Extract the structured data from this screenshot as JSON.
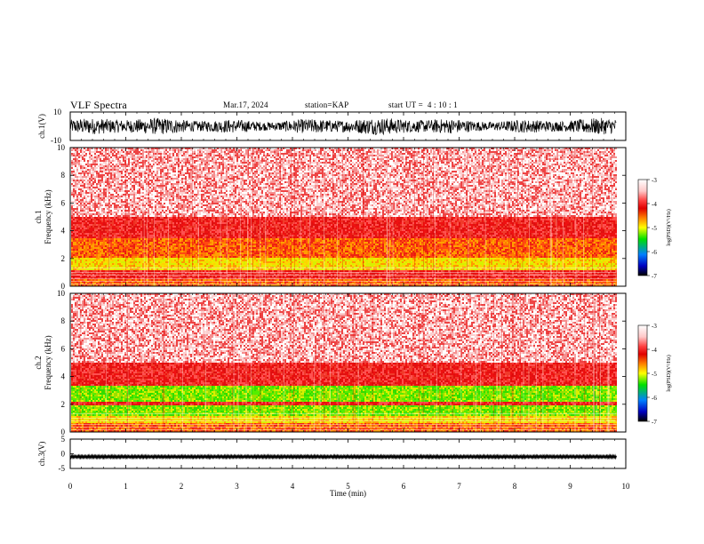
{
  "header": {
    "title": "VLF Spectra",
    "date": "Mar.17, 2024",
    "station_label": "station=",
    "station": "KAP",
    "start_label": "start  UT  =",
    "start_time": "4 : 10 : 1"
  },
  "colors": {
    "background_white": "#ffffff",
    "spectrogram_red": "#ee1111",
    "spectrogram_orange": "#ff7a00",
    "spectrogram_yellow": "#f0e800",
    "spectrogram_green": "#33dd00",
    "waveform": "#000000"
  },
  "chart_data": [
    {
      "type": "line",
      "name": "ch1-waveform",
      "ylabel": "ch.1(V)",
      "ylim": [
        -10,
        10
      ],
      "yticks": [
        "10",
        "-10"
      ],
      "xlim": [
        0,
        10
      ],
      "description_values": {
        "x_min": 0,
        "x_max": 9.83,
        "amplitude_typical": 6
      }
    },
    {
      "type": "heatmap",
      "name": "ch1-spectrogram",
      "ylabel": "ch.1\nFrequency (kHz)",
      "ylabel_line1": "ch.1",
      "ylabel_line2": "Frequency (kHz)",
      "ylim": [
        0,
        10
      ],
      "yticks": [
        "0",
        "2",
        "4",
        "6",
        "8",
        "10"
      ],
      "xlim": [
        0,
        10
      ],
      "data_x_max": 9.83,
      "colorbar": {
        "label": "log(PSD)(V²/Hz)",
        "ticks": [
          "-3",
          "-4",
          "-5",
          "-6",
          "-7"
        ],
        "range": [
          -7,
          -3
        ]
      },
      "bands": [
        {
          "f_low": 0.0,
          "f_high": 0.5,
          "level": "orange"
        },
        {
          "f_low": 0.5,
          "f_high": 1.2,
          "level": "red"
        },
        {
          "f_low": 1.2,
          "f_high": 2.0,
          "level": "yellow"
        },
        {
          "f_low": 2.0,
          "f_high": 3.5,
          "level": "orange"
        },
        {
          "f_low": 3.5,
          "f_high": 5.0,
          "level": "red"
        },
        {
          "f_low": 5.0,
          "f_high": 10.0,
          "level": "light-red"
        }
      ]
    },
    {
      "type": "heatmap",
      "name": "ch2-spectrogram",
      "ylabel_line1": "ch.2",
      "ylabel_line2": "Frequency (kHz)",
      "ylim": [
        0,
        10
      ],
      "yticks": [
        "0",
        "2",
        "4",
        "6",
        "8",
        "10"
      ],
      "xlim": [
        0,
        10
      ],
      "data_x_max": 9.83,
      "colorbar": {
        "label": "log(PSD)(V²/Hz)",
        "ticks": [
          "-3",
          "-4",
          "-5",
          "-6",
          "-7"
        ],
        "range": [
          -7,
          -3
        ]
      },
      "bands": [
        {
          "f_low": 0.0,
          "f_high": 0.6,
          "level": "orange"
        },
        {
          "f_low": 0.6,
          "f_high": 1.2,
          "level": "yellow"
        },
        {
          "f_low": 1.2,
          "f_high": 1.9,
          "level": "green"
        },
        {
          "f_low": 1.9,
          "f_high": 2.2,
          "level": "red"
        },
        {
          "f_low": 2.2,
          "f_high": 3.3,
          "level": "green"
        },
        {
          "f_low": 3.3,
          "f_high": 5.0,
          "level": "red"
        },
        {
          "f_low": 5.0,
          "f_high": 10.0,
          "level": "light-red"
        }
      ]
    },
    {
      "type": "line",
      "name": "ch3-waveform",
      "ylabel": "ch.3(V)",
      "ylim": [
        -5,
        5
      ],
      "yticks": [
        "5",
        "0",
        "-5"
      ],
      "xlim": [
        0,
        10
      ],
      "xticks": [
        "0",
        "1",
        "2",
        "3",
        "4",
        "5",
        "6",
        "7",
        "8",
        "9",
        "10"
      ],
      "xlabel": "Time  (min)",
      "trace_center": -1,
      "trace_amplitude": 0.4
    }
  ]
}
